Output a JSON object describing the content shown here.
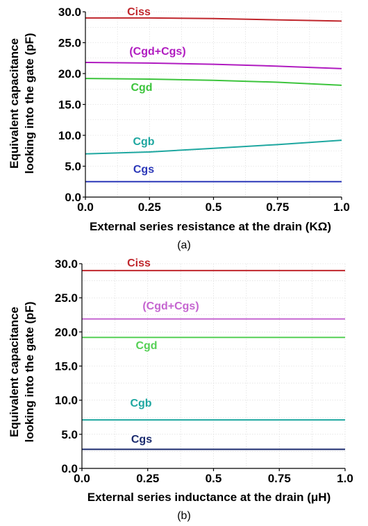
{
  "chart_data": [
    {
      "type": "line",
      "caption": "(a)",
      "xlabel": "External series resistance at the drain (KΩ)",
      "ylabel": "Equivalent capacitance looking into the gate (pF)",
      "ylabel_lines": [
        "Equivalent capacitance",
        "looking into the gate (pF)"
      ],
      "xlim": [
        0,
        1
      ],
      "ylim": [
        0,
        30
      ],
      "x_ticks": [
        0,
        0.25,
        0.5,
        0.75,
        1.0
      ],
      "x_tick_labels": [
        "0.0",
        "0.25",
        "0.5",
        "0.75",
        "1.0"
      ],
      "y_ticks": [
        0,
        5,
        10,
        15,
        20,
        25,
        30
      ],
      "y_tick_labels": [
        "0.0",
        "5.0",
        "10.0",
        "15.0",
        "20.0",
        "25.0",
        "30.0"
      ],
      "grid": true,
      "series": [
        {
          "name": "Ciss",
          "color": "#c0262c",
          "x": [
            0,
            0.25,
            0.5,
            0.75,
            1.0
          ],
          "values": [
            29.0,
            29.0,
            28.9,
            28.7,
            28.5
          ]
        },
        {
          "name": "(Cgd+Cgs)",
          "color": "#b01bc0",
          "x": [
            0,
            0.25,
            0.5,
            0.75,
            1.0
          ],
          "values": [
            21.8,
            21.7,
            21.5,
            21.2,
            20.8
          ]
        },
        {
          "name": "Cgd",
          "color": "#3cc43c",
          "x": [
            0,
            0.25,
            0.5,
            0.75,
            1.0
          ],
          "values": [
            19.2,
            19.1,
            18.9,
            18.6,
            18.1
          ]
        },
        {
          "name": "Cgb",
          "color": "#1ea7a0",
          "x": [
            0,
            0.25,
            0.5,
            0.75,
            1.0
          ],
          "values": [
            7.0,
            7.3,
            7.9,
            8.5,
            9.2
          ]
        },
        {
          "name": "Cgs",
          "color": "#2a37b8",
          "x": [
            0,
            0.25,
            0.5,
            0.75,
            1.0
          ],
          "values": [
            2.5,
            2.5,
            2.5,
            2.5,
            2.5
          ]
        }
      ]
    },
    {
      "type": "line",
      "caption": "(b)",
      "xlabel": "External series inductance at the drain (μH)",
      "ylabel": "Equivalent capacitance looking into the gate (pF)",
      "ylabel_lines": [
        "Equivalent capacitance",
        "looking into the gate (pF)"
      ],
      "xlim": [
        0,
        1
      ],
      "ylim": [
        0,
        30
      ],
      "x_ticks": [
        0,
        0.25,
        0.5,
        0.75,
        1.0
      ],
      "x_tick_labels": [
        "0.0",
        "0.25",
        "0.5",
        "0.75",
        "1.0"
      ],
      "y_ticks": [
        0,
        5,
        10,
        15,
        20,
        25,
        30
      ],
      "y_tick_labels": [
        "0.0",
        "5.0",
        "10.0",
        "15.0",
        "20.0",
        "25.0",
        "30.0"
      ],
      "grid": true,
      "series": [
        {
          "name": "Ciss",
          "color": "#c0262c",
          "x": [
            0,
            1.0
          ],
          "values": [
            29.0,
            29.0
          ]
        },
        {
          "name": "(Cgd+Cgs)",
          "color": "#c565d0",
          "x": [
            0,
            1.0
          ],
          "values": [
            21.9,
            21.9
          ]
        },
        {
          "name": "Cgd",
          "color": "#55d055",
          "x": [
            0,
            1.0
          ],
          "values": [
            19.2,
            19.2
          ]
        },
        {
          "name": "Cgb",
          "color": "#1ea7a0",
          "x": [
            0,
            1.0
          ],
          "values": [
            7.1,
            7.1
          ]
        },
        {
          "name": "Cgs",
          "color": "#1a2a6e",
          "x": [
            0,
            1.0
          ],
          "values": [
            2.8,
            2.8
          ]
        }
      ]
    }
  ]
}
